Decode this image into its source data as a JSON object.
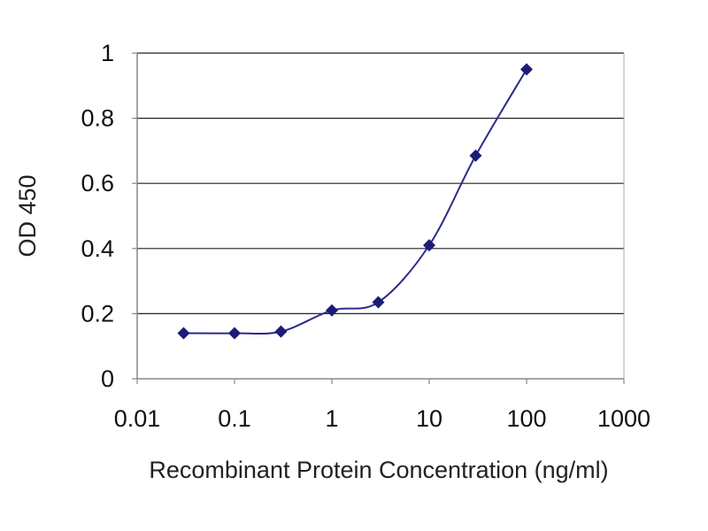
{
  "chart_data": {
    "type": "line",
    "title": "",
    "xlabel": "Recombinant Protein Concentration (ng/ml)",
    "ylabel": "OD 450",
    "x_scale": "log",
    "xlim": [
      0.01,
      1000
    ],
    "ylim": [
      0,
      1
    ],
    "x_ticks": [
      0.01,
      0.1,
      1,
      10,
      100,
      1000
    ],
    "x_tick_labels": [
      "0.01",
      "0.1",
      "1",
      "10",
      "100",
      "1000"
    ],
    "y_ticks": [
      0,
      0.2,
      0.4,
      0.6,
      0.8,
      1
    ],
    "y_tick_labels": [
      "0",
      "0.2",
      "0.4",
      "0.6",
      "0.8",
      "1"
    ],
    "grid": "horizontal",
    "legend": "none",
    "series": [
      {
        "x": [
          0.03,
          0.1,
          0.3,
          1,
          3,
          10,
          30,
          100
        ],
        "y": [
          0.14,
          0.14,
          0.145,
          0.21,
          0.235,
          0.41,
          0.685,
          0.95
        ]
      }
    ],
    "colors": {
      "line": "#2b2b8c",
      "marker": "#1c1c78",
      "grid": "#222222",
      "frame": "#aaaaaa"
    }
  }
}
